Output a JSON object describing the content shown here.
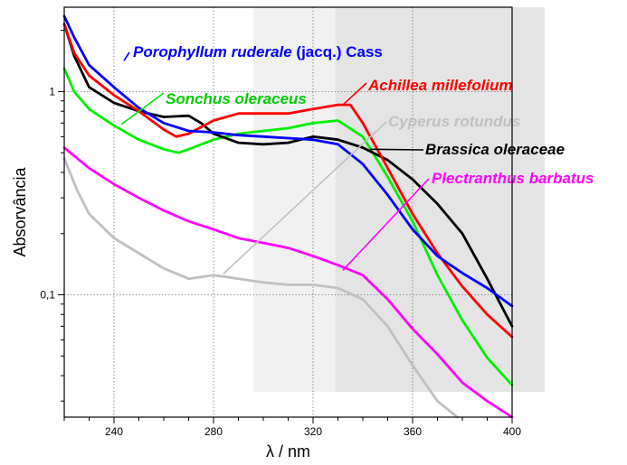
{
  "chart_data": {
    "type": "line",
    "xlabel": "λ / nm",
    "ylabel": "Absorvância",
    "xlim": [
      220,
      400
    ],
    "ylim": [
      0.025,
      2.6
    ],
    "yscale": "log",
    "xticks": [
      240,
      280,
      320,
      360,
      400
    ],
    "xtick_labels": [
      "240",
      "280",
      "320",
      "360",
      "400"
    ],
    "yticks": [
      0.1,
      1
    ],
    "ytick_labels": [
      "0,1",
      "1"
    ],
    "grid": "dotted at major ticks",
    "shaded_regions": [
      {
        "x": [
          296,
          400
        ],
        "color": "#f1f1f1"
      },
      {
        "x": [
          329,
          400
        ],
        "color": "#e4e4e4"
      }
    ],
    "series": [
      {
        "name": "Porophyllum ruderale (jacq.) Cass",
        "name_parts": [
          {
            "text": "Porophyllum ruderale",
            "italic": true
          },
          {
            "text": " (jacq.) Cass",
            "italic": false
          }
        ],
        "label_color": "#0000ff",
        "color": "#0000ff",
        "x": [
          220,
          224,
          230,
          240,
          250,
          260,
          270,
          280,
          290,
          300,
          310,
          320,
          330,
          340,
          350,
          360,
          370,
          380,
          390,
          400
        ],
        "values": [
          2.35,
          1.85,
          1.35,
          1.05,
          0.83,
          0.7,
          0.64,
          0.63,
          0.61,
          0.6,
          0.59,
          0.58,
          0.55,
          0.44,
          0.31,
          0.21,
          0.155,
          0.128,
          0.108,
          0.088
        ],
        "label_anchor": [
          244,
          1.42
        ]
      },
      {
        "name": "Sonchus oleraceus",
        "name_parts": [
          {
            "text": "Sonchus oleraceus",
            "italic": true
          }
        ],
        "label_color": "#00cc00",
        "color": "#00ee00",
        "x": [
          220,
          224,
          230,
          240,
          250,
          260,
          266,
          270,
          280,
          290,
          300,
          310,
          320,
          330,
          340,
          350,
          360,
          370,
          380,
          390,
          400
        ],
        "values": [
          1.3,
          1.0,
          0.82,
          0.68,
          0.58,
          0.52,
          0.5,
          0.52,
          0.58,
          0.62,
          0.64,
          0.66,
          0.7,
          0.72,
          0.6,
          0.38,
          0.23,
          0.125,
          0.075,
          0.049,
          0.036
        ],
        "label_anchor": [
          243,
          0.69
        ]
      },
      {
        "name": "Achillea millefolium",
        "name_parts": [
          {
            "text": "Achillea millefolium",
            "italic": true
          }
        ],
        "label_color": "#ff0000",
        "color": "#ff0000",
        "x": [
          220,
          224,
          230,
          240,
          250,
          260,
          265,
          270,
          280,
          290,
          300,
          310,
          320,
          330,
          335,
          340,
          350,
          360,
          370,
          380,
          390,
          400
        ],
        "values": [
          2.15,
          1.55,
          1.2,
          0.96,
          0.8,
          0.65,
          0.6,
          0.62,
          0.72,
          0.78,
          0.78,
          0.78,
          0.82,
          0.86,
          0.86,
          0.7,
          0.42,
          0.25,
          0.16,
          0.11,
          0.08,
          0.062
        ],
        "label_anchor": [
          332,
          0.86
        ]
      },
      {
        "name": "Cyperus rotundus",
        "name_parts": [
          {
            "text": "Cyperus rotundus",
            "italic": true
          }
        ],
        "label_color": "#c0c0c0",
        "color": "#c0c0c0",
        "x": [
          220,
          225,
          230,
          240,
          250,
          260,
          270,
          280,
          290,
          300,
          310,
          320,
          330,
          340,
          350,
          360,
          370,
          378
        ],
        "values": [
          0.47,
          0.33,
          0.25,
          0.19,
          0.16,
          0.135,
          0.12,
          0.125,
          0.12,
          0.115,
          0.112,
          0.112,
          0.108,
          0.095,
          0.07,
          0.045,
          0.03,
          0.025
        ],
        "label_anchor": [
          284,
          0.127
        ]
      },
      {
        "name": "Brassica oleraceae",
        "name_parts": [
          {
            "text": "Brassica oleraceae",
            "italic": true
          }
        ],
        "label_color": "#000000",
        "color": "#000000",
        "x": [
          220,
          224,
          230,
          240,
          250,
          260,
          270,
          275,
          280,
          290,
          300,
          310,
          320,
          330,
          340,
          350,
          360,
          370,
          380,
          390,
          400
        ],
        "values": [
          2.15,
          1.5,
          1.05,
          0.88,
          0.8,
          0.75,
          0.76,
          0.7,
          0.62,
          0.56,
          0.55,
          0.56,
          0.6,
          0.58,
          0.53,
          0.46,
          0.37,
          0.28,
          0.2,
          0.12,
          0.07
        ],
        "label_anchor": [
          343,
          0.52
        ]
      },
      {
        "name": "Plectranthus barbatus",
        "name_parts": [
          {
            "text": "Plectranthus barbatus",
            "italic": true
          }
        ],
        "label_color": "#ff00ff",
        "color": "#ff00ff",
        "x": [
          220,
          230,
          240,
          250,
          260,
          270,
          280,
          290,
          300,
          310,
          320,
          330,
          340,
          350,
          360,
          370,
          380,
          390,
          400
        ],
        "values": [
          0.53,
          0.42,
          0.35,
          0.3,
          0.26,
          0.23,
          0.21,
          0.19,
          0.18,
          0.17,
          0.155,
          0.14,
          0.125,
          0.095,
          0.068,
          0.051,
          0.037,
          0.03,
          0.025
        ],
        "label_anchor": [
          332,
          0.132
        ]
      }
    ]
  }
}
